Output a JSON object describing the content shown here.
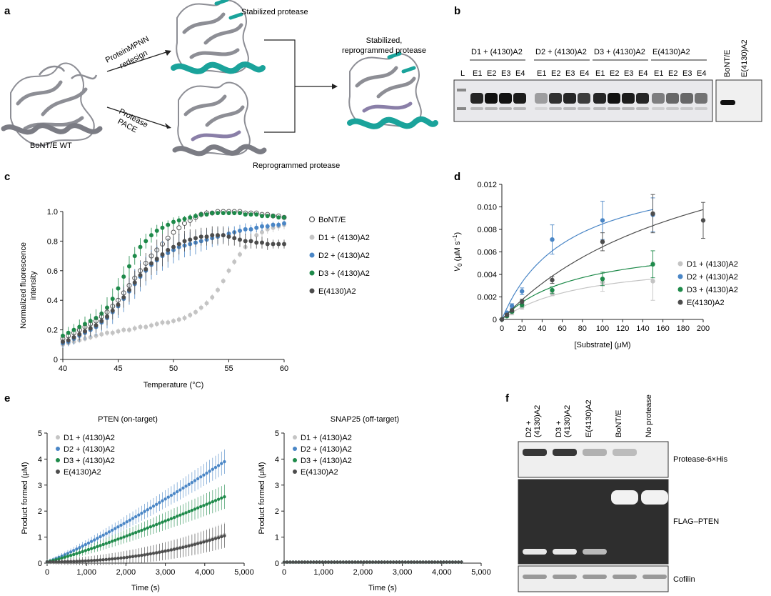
{
  "panel_letters": [
    "a",
    "b",
    "c",
    "d",
    "e",
    "f"
  ],
  "panel_a": {
    "wt_label": "BoNT/E WT",
    "top_arrow_label_1": "ProteinMPNN",
    "top_arrow_label_2": "redesign",
    "bottom_arrow_label_1": "Protease",
    "bottom_arrow_label_2": "PACE",
    "top_result": "Stabilized protease",
    "bottom_result": "Reprogrammed protease",
    "final_label_1": "Stabilized,",
    "final_label_2": "reprogrammed protease",
    "colors": {
      "cartoon": "#8d8e95",
      "teal": "#1aa39b",
      "purple": "#8a7fa8"
    }
  },
  "panel_b": {
    "groups": [
      "D1 + (4130)A2",
      "D2 + (4130)A2",
      "D3 + (4130)A2",
      "E(4130)A2"
    ],
    "ladder": "L",
    "lanes": [
      "E1",
      "E2",
      "E3",
      "E4"
    ],
    "side_lanes": [
      "BoNT/E",
      "E(4130)A2"
    ]
  },
  "chart_data": [
    {
      "id": "c",
      "type": "scatter",
      "xlabel": "Temperature (°C)",
      "ylabel_lines": [
        "Normalized fluorescence",
        "intensity"
      ],
      "xlim": [
        40,
        60
      ],
      "ylim": [
        0,
        1.0
      ],
      "xticks": [
        40,
        45,
        50,
        55,
        60
      ],
      "yticks": [
        "0",
        "0.2",
        "0.4",
        "0.6",
        "0.8",
        "1.0"
      ],
      "legend": "right",
      "series": [
        {
          "name": "BoNT/E",
          "color": "#555555",
          "marker": "open",
          "x": [
            40,
            40.5,
            41,
            41.5,
            42,
            42.5,
            43,
            43.5,
            44,
            44.5,
            45,
            45.5,
            46,
            46.5,
            47,
            47.5,
            48,
            48.5,
            49,
            49.5,
            50,
            50.5,
            51,
            51.5,
            52,
            52.5,
            53,
            53.5,
            54,
            54.5,
            55,
            55.5,
            56,
            56.5,
            57,
            57.5,
            58,
            58.5,
            59,
            59.5,
            60
          ],
          "y": [
            0.14,
            0.16,
            0.18,
            0.2,
            0.22,
            0.24,
            0.26,
            0.29,
            0.32,
            0.36,
            0.4,
            0.45,
            0.5,
            0.55,
            0.6,
            0.65,
            0.7,
            0.74,
            0.78,
            0.82,
            0.86,
            0.89,
            0.92,
            0.94,
            0.96,
            0.98,
            0.99,
            0.99,
            1.0,
            1.0,
            1.0,
            1.0,
            1.0,
            0.99,
            0.99,
            0.99,
            0.98,
            0.98,
            0.97,
            0.97,
            0.96
          ],
          "err": [
            0.03,
            0.03,
            0.03,
            0.03,
            0.03,
            0.04,
            0.04,
            0.04,
            0.05,
            0.05,
            0.05,
            0.06,
            0.06,
            0.06,
            0.07,
            0.07,
            0.07,
            0.07,
            0.07,
            0.06,
            0.06,
            0.05,
            0.04,
            0.04,
            0.03,
            0.02,
            0.02,
            0.01,
            0.01,
            0.01,
            0.01,
            0.01,
            0.01,
            0.01,
            0.01,
            0.01,
            0.01,
            0.01,
            0.01,
            0.01,
            0.01
          ]
        },
        {
          "name": "D1 + (4130)A2",
          "color": "#c4c4c4",
          "marker": "filled",
          "x": [
            40,
            40.5,
            41,
            41.5,
            42,
            42.5,
            43,
            43.5,
            44,
            44.5,
            45,
            45.5,
            46,
            46.5,
            47,
            47.5,
            48,
            48.5,
            49,
            49.5,
            50,
            50.5,
            51,
            51.5,
            52,
            52.5,
            53,
            53.5,
            54,
            54.5,
            55,
            55.5,
            56,
            56.5,
            57,
            57.5,
            58,
            58.5,
            59,
            59.5,
            60
          ],
          "y": [
            0.1,
            0.11,
            0.12,
            0.13,
            0.14,
            0.15,
            0.16,
            0.17,
            0.18,
            0.18,
            0.19,
            0.2,
            0.2,
            0.21,
            0.22,
            0.22,
            0.23,
            0.24,
            0.25,
            0.25,
            0.26,
            0.27,
            0.28,
            0.3,
            0.32,
            0.35,
            0.38,
            0.42,
            0.47,
            0.53,
            0.6,
            0.66,
            0.71,
            0.76,
            0.8,
            0.84,
            0.86,
            0.88,
            0.89,
            0.9,
            0.91
          ],
          "err": [
            0.02,
            0.02,
            0.02,
            0.02,
            0.02,
            0.02,
            0.02,
            0.02,
            0.02,
            0.02,
            0.02,
            0.02,
            0.02,
            0.02,
            0.02,
            0.02,
            0.02,
            0.02,
            0.02,
            0.02,
            0.02,
            0.02,
            0.02,
            0.02,
            0.02,
            0.02,
            0.02,
            0.02,
            0.02,
            0.02,
            0.02,
            0.02,
            0.02,
            0.02,
            0.03,
            0.03,
            0.03,
            0.03,
            0.03,
            0.03,
            0.03
          ]
        },
        {
          "name": "D2 + (4130)A2",
          "color": "#4a86c6",
          "marker": "filled",
          "x": [
            40,
            40.5,
            41,
            41.5,
            42,
            42.5,
            43,
            43.5,
            44,
            44.5,
            45,
            45.5,
            46,
            46.5,
            47,
            47.5,
            48,
            48.5,
            49,
            49.5,
            50,
            50.5,
            51,
            51.5,
            52,
            52.5,
            53,
            53.5,
            54,
            54.5,
            55,
            55.5,
            56,
            56.5,
            57,
            57.5,
            58,
            58.5,
            59,
            59.5,
            60
          ],
          "y": [
            0.11,
            0.12,
            0.14,
            0.16,
            0.18,
            0.2,
            0.22,
            0.25,
            0.28,
            0.32,
            0.36,
            0.41,
            0.46,
            0.51,
            0.56,
            0.6,
            0.64,
            0.67,
            0.7,
            0.72,
            0.74,
            0.76,
            0.77,
            0.78,
            0.79,
            0.8,
            0.81,
            0.82,
            0.83,
            0.84,
            0.85,
            0.86,
            0.87,
            0.88,
            0.88,
            0.89,
            0.9,
            0.9,
            0.91,
            0.91,
            0.92
          ],
          "err": [
            0.03,
            0.03,
            0.04,
            0.04,
            0.05,
            0.05,
            0.06,
            0.06,
            0.07,
            0.08,
            0.08,
            0.09,
            0.09,
            0.1,
            0.1,
            0.1,
            0.1,
            0.1,
            0.1,
            0.1,
            0.09,
            0.09,
            0.08,
            0.08,
            0.08,
            0.07,
            0.07,
            0.06,
            0.06,
            0.05,
            0.05,
            0.04,
            0.04,
            0.04,
            0.03,
            0.03,
            0.03,
            0.02,
            0.02,
            0.02,
            0.02
          ]
        },
        {
          "name": "D3 + (4130)A2",
          "color": "#1e8a4a",
          "marker": "filled",
          "x": [
            40,
            40.5,
            41,
            41.5,
            42,
            42.5,
            43,
            43.5,
            44,
            44.5,
            45,
            45.5,
            46,
            46.5,
            47,
            47.5,
            48,
            48.5,
            49,
            49.5,
            50,
            50.5,
            51,
            51.5,
            52,
            52.5,
            53,
            53.5,
            54,
            54.5,
            55,
            55.5,
            56,
            56.5,
            57,
            57.5,
            58,
            58.5,
            59,
            59.5,
            60
          ],
          "y": [
            0.16,
            0.18,
            0.2,
            0.22,
            0.24,
            0.26,
            0.28,
            0.31,
            0.35,
            0.41,
            0.48,
            0.56,
            0.63,
            0.7,
            0.76,
            0.8,
            0.84,
            0.87,
            0.89,
            0.91,
            0.93,
            0.94,
            0.95,
            0.96,
            0.97,
            0.98,
            0.98,
            0.99,
            0.99,
            0.99,
            0.99,
            0.99,
            0.99,
            0.98,
            0.98,
            0.98,
            0.97,
            0.97,
            0.97,
            0.96,
            0.96
          ],
          "err": [
            0.04,
            0.04,
            0.04,
            0.05,
            0.05,
            0.05,
            0.06,
            0.06,
            0.07,
            0.07,
            0.07,
            0.07,
            0.07,
            0.06,
            0.06,
            0.05,
            0.05,
            0.04,
            0.04,
            0.03,
            0.03,
            0.03,
            0.02,
            0.02,
            0.02,
            0.02,
            0.01,
            0.01,
            0.01,
            0.01,
            0.01,
            0.01,
            0.01,
            0.01,
            0.01,
            0.01,
            0.01,
            0.01,
            0.01,
            0.01,
            0.01
          ]
        },
        {
          "name": "E(4130)A2",
          "color": "#4d4d4d",
          "marker": "filled",
          "x": [
            40,
            40.5,
            41,
            41.5,
            42,
            42.5,
            43,
            43.5,
            44,
            44.5,
            45,
            45.5,
            46,
            46.5,
            47,
            47.5,
            48,
            48.5,
            49,
            49.5,
            50,
            50.5,
            51,
            51.5,
            52,
            52.5,
            53,
            53.5,
            54,
            54.5,
            55,
            55.5,
            56,
            56.5,
            57,
            57.5,
            58,
            58.5,
            59,
            59.5,
            60
          ],
          "y": [
            0.12,
            0.13,
            0.15,
            0.17,
            0.19,
            0.21,
            0.23,
            0.26,
            0.29,
            0.33,
            0.37,
            0.42,
            0.47,
            0.52,
            0.57,
            0.61,
            0.65,
            0.68,
            0.71,
            0.74,
            0.76,
            0.78,
            0.8,
            0.81,
            0.82,
            0.83,
            0.83,
            0.84,
            0.84,
            0.84,
            0.83,
            0.82,
            0.81,
            0.8,
            0.8,
            0.79,
            0.79,
            0.78,
            0.78,
            0.78,
            0.78
          ],
          "err": [
            0.03,
            0.03,
            0.03,
            0.04,
            0.04,
            0.05,
            0.05,
            0.06,
            0.06,
            0.06,
            0.07,
            0.07,
            0.08,
            0.08,
            0.08,
            0.08,
            0.08,
            0.08,
            0.08,
            0.08,
            0.07,
            0.07,
            0.07,
            0.07,
            0.06,
            0.06,
            0.06,
            0.06,
            0.06,
            0.06,
            0.06,
            0.05,
            0.05,
            0.05,
            0.05,
            0.04,
            0.04,
            0.04,
            0.03,
            0.03,
            0.03
          ]
        }
      ]
    },
    {
      "id": "d",
      "type": "scatter",
      "xlabel": "[Substrate] (μM)",
      "ylabel_italic": "V",
      "ylabel_sub": "0",
      "ylabel_rest": " (μM s",
      "ylabel_sup": "−1",
      "ylabel_close": ")",
      "xlim": [
        0,
        200
      ],
      "ylim": [
        0,
        0.012
      ],
      "xticks": [
        0,
        20,
        40,
        60,
        80,
        100,
        120,
        140,
        160,
        180,
        200
      ],
      "yticks": [
        "0",
        "0.002",
        "0.004",
        "0.006",
        "0.008",
        "0.010",
        "0.012"
      ],
      "legend": "right",
      "series": [
        {
          "name": "D1 + (4130)A2",
          "color": "#c4c4c4",
          "x": [
            0,
            5,
            10,
            20,
            50,
            100,
            150
          ],
          "y": [
            0,
            0.0003,
            0.0006,
            0.0011,
            0.0023,
            0.0033,
            0.0034
          ],
          "err": [
            0,
            0.0001,
            0.0002,
            0.0002,
            0.0002,
            0.0008,
            0.0017
          ],
          "vmax": 0.0055,
          "km": 80
        },
        {
          "name": "D2 + (4130)A2",
          "color": "#4a86c6",
          "x": [
            0,
            5,
            10,
            20,
            50,
            100,
            150
          ],
          "y": [
            0,
            0.0006,
            0.0012,
            0.0025,
            0.0071,
            0.0088,
            0.0093
          ],
          "err": [
            0,
            0.0001,
            0.0002,
            0.0003,
            0.0013,
            0.0017,
            0.0015
          ],
          "vmax": 0.014,
          "km": 65
        },
        {
          "name": "D3 + (4130)A2",
          "color": "#1e8a4a",
          "x": [
            0,
            5,
            10,
            20,
            50,
            100,
            150
          ],
          "y": [
            0,
            0.0003,
            0.0007,
            0.0013,
            0.0026,
            0.0036,
            0.0049
          ],
          "err": [
            0,
            0.0001,
            0.0001,
            0.0002,
            0.0003,
            0.0006,
            0.0012
          ],
          "vmax": 0.0072,
          "km": 75
        },
        {
          "name": "E(4130)A2",
          "color": "#4d4d4d",
          "x": [
            0,
            5,
            10,
            20,
            50,
            100,
            150,
            200
          ],
          "y": [
            0,
            0.0004,
            0.0008,
            0.0016,
            0.0035,
            0.0069,
            0.0094,
            0.0088
          ],
          "err": [
            0,
            0.0001,
            0.0001,
            0.0002,
            0.0003,
            0.0008,
            0.0017,
            0.0016
          ],
          "vmax": 0.02,
          "km": 210
        }
      ]
    },
    {
      "id": "e1",
      "type": "scatter",
      "title": "PTEN (on-target)",
      "xlabel": "Time (s)",
      "ylabel": "Product formed (μM)",
      "xlim": [
        0,
        5000
      ],
      "ylim": [
        0,
        5
      ],
      "xticks": [
        "0",
        "1,000",
        "2,000",
        "3,000",
        "4,000",
        "5,000"
      ],
      "yticks": [
        "0",
        "1",
        "2",
        "3",
        "4",
        "5"
      ],
      "legend": "top-left",
      "series": [
        {
          "name": "D1 + (4130)A2",
          "color": "#c4c4c4",
          "end": 1.05,
          "shape": "late"
        },
        {
          "name": "D2 + (4130)A2",
          "color": "#4a86c6",
          "end": 3.85,
          "shape": "linear"
        },
        {
          "name": "D3 + (4130)A2",
          "color": "#1e8a4a",
          "end": 2.5,
          "shape": "linear"
        },
        {
          "name": "E(4130)A2",
          "color": "#4d4d4d",
          "end": 1.0,
          "shape": "late"
        }
      ]
    },
    {
      "id": "e2",
      "type": "scatter",
      "title": "SNAP25 (off-target)",
      "xlabel": "Time (s)",
      "ylabel": "Product formed (μM)",
      "xlim": [
        0,
        5000
      ],
      "ylim": [
        0,
        5
      ],
      "xticks": [
        "0",
        "1,000",
        "2,000",
        "3,000",
        "4,000",
        "5,000"
      ],
      "yticks": [
        "0",
        "1",
        "2",
        "3",
        "4",
        "5"
      ],
      "legend": "top-left",
      "series": [
        {
          "name": "D1 + (4130)A2",
          "color": "#c4c4c4",
          "end": 0.05,
          "shape": "flat"
        },
        {
          "name": "D2 + (4130)A2",
          "color": "#4a86c6",
          "end": 0.05,
          "shape": "flat"
        },
        {
          "name": "D3 + (4130)A2",
          "color": "#1e8a4a",
          "end": 0.05,
          "shape": "flat"
        },
        {
          "name": "E(4130)A2",
          "color": "#4d4d4d",
          "end": 0.05,
          "shape": "flat"
        }
      ]
    }
  ],
  "panel_f": {
    "lanes": [
      "D2 +\n(4130)A2",
      "D3 +\n(4130)A2",
      "E(4130)A2",
      "BoNT/E",
      "No protease"
    ],
    "blots": [
      "Protease-6×His",
      "FLAG–PTEN",
      "Cofilin"
    ]
  }
}
